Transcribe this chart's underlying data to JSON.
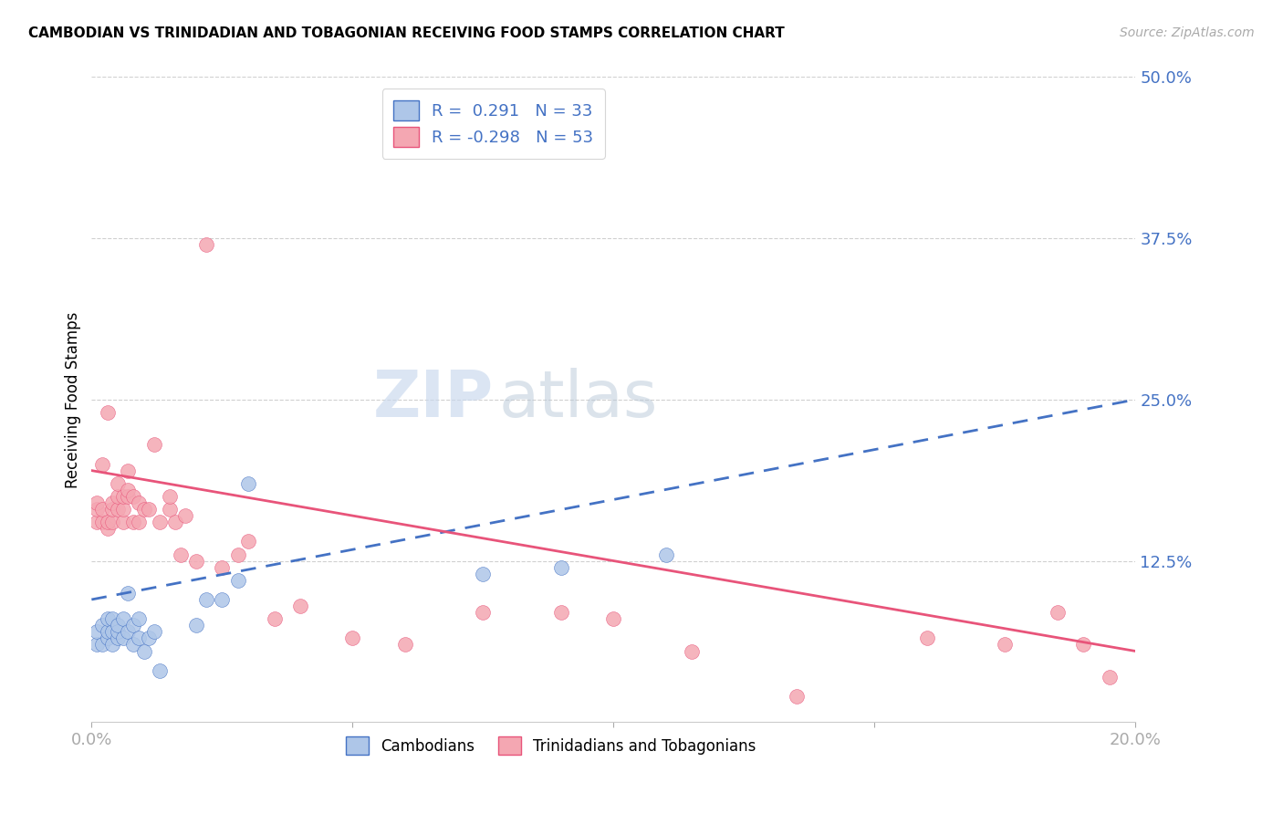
{
  "title": "CAMBODIAN VS TRINIDADIAN AND TOBAGONIAN RECEIVING FOOD STAMPS CORRELATION CHART",
  "source": "Source: ZipAtlas.com",
  "ylabel": "Receiving Food Stamps",
  "xlim": [
    0.0,
    0.2
  ],
  "ylim": [
    0.0,
    0.5
  ],
  "yticks": [
    0.125,
    0.25,
    0.375,
    0.5
  ],
  "ytick_labels": [
    "12.5%",
    "25.0%",
    "37.5%",
    "50.0%"
  ],
  "xtick_positions": [
    0.0,
    0.05,
    0.1,
    0.15,
    0.2
  ],
  "xtick_labels": [
    "0.0%",
    "",
    "",
    "",
    "20.0%"
  ],
  "cambodian_color": "#aec6e8",
  "trinidadian_color": "#f4a7b2",
  "trend_cambodian_color": "#4472c4",
  "trend_trinidadian_color": "#e8547a",
  "legend_R_cambodian": "R =  0.291",
  "legend_N_cambodian": "N = 33",
  "legend_R_trinidadian": "R = -0.298",
  "legend_N_trinidadian": "N = 53",
  "watermark_zip": "ZIP",
  "watermark_atlas": "atlas",
  "background_color": "#ffffff",
  "grid_color": "#d0d0d0",
  "cambodian_x": [
    0.001,
    0.001,
    0.002,
    0.002,
    0.003,
    0.003,
    0.003,
    0.004,
    0.004,
    0.004,
    0.005,
    0.005,
    0.005,
    0.006,
    0.006,
    0.007,
    0.007,
    0.008,
    0.008,
    0.009,
    0.009,
    0.01,
    0.011,
    0.012,
    0.013,
    0.02,
    0.022,
    0.025,
    0.028,
    0.03,
    0.075,
    0.09,
    0.11
  ],
  "cambodian_y": [
    0.06,
    0.07,
    0.06,
    0.075,
    0.065,
    0.07,
    0.08,
    0.06,
    0.07,
    0.08,
    0.065,
    0.07,
    0.075,
    0.065,
    0.08,
    0.07,
    0.1,
    0.06,
    0.075,
    0.065,
    0.08,
    0.055,
    0.065,
    0.07,
    0.04,
    0.075,
    0.095,
    0.095,
    0.11,
    0.185,
    0.115,
    0.12,
    0.13
  ],
  "trinidadian_x": [
    0.001,
    0.001,
    0.001,
    0.002,
    0.002,
    0.002,
    0.003,
    0.003,
    0.003,
    0.004,
    0.004,
    0.004,
    0.005,
    0.005,
    0.005,
    0.006,
    0.006,
    0.006,
    0.007,
    0.007,
    0.007,
    0.008,
    0.008,
    0.009,
    0.009,
    0.01,
    0.011,
    0.012,
    0.013,
    0.015,
    0.015,
    0.016,
    0.017,
    0.018,
    0.02,
    0.022,
    0.025,
    0.028,
    0.03,
    0.035,
    0.04,
    0.05,
    0.06,
    0.075,
    0.09,
    0.1,
    0.115,
    0.135,
    0.16,
    0.175,
    0.185,
    0.19,
    0.195
  ],
  "trinidadian_y": [
    0.155,
    0.165,
    0.17,
    0.155,
    0.165,
    0.2,
    0.15,
    0.155,
    0.24,
    0.155,
    0.165,
    0.17,
    0.165,
    0.175,
    0.185,
    0.155,
    0.165,
    0.175,
    0.175,
    0.18,
    0.195,
    0.155,
    0.175,
    0.155,
    0.17,
    0.165,
    0.165,
    0.215,
    0.155,
    0.165,
    0.175,
    0.155,
    0.13,
    0.16,
    0.125,
    0.37,
    0.12,
    0.13,
    0.14,
    0.08,
    0.09,
    0.065,
    0.06,
    0.085,
    0.085,
    0.08,
    0.055,
    0.02,
    0.065,
    0.06,
    0.085,
    0.06,
    0.035
  ],
  "trend_cam_x0": 0.0,
  "trend_cam_y0": 0.095,
  "trend_cam_x1": 0.2,
  "trend_cam_y1": 0.25,
  "trend_tri_x0": 0.0,
  "trend_tri_y0": 0.195,
  "trend_tri_x1": 0.2,
  "trend_tri_y1": 0.055
}
